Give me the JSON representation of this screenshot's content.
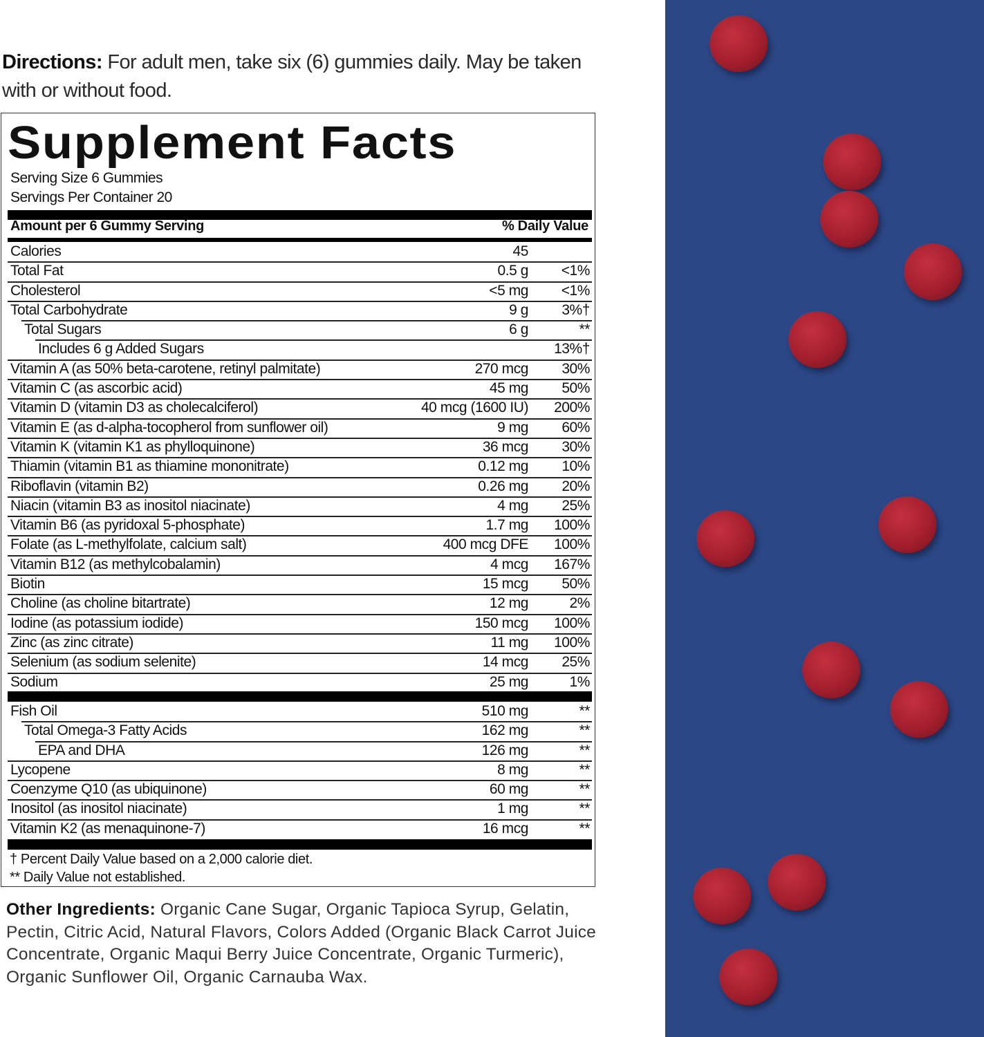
{
  "directions": {
    "label": "Directions:",
    "text": " For adult men, take six (6) gummies daily. May be taken with or without food."
  },
  "facts": {
    "title": "Supplement Facts",
    "serving_size": "Serving Size 6 Gummies",
    "servings_per_container": "Servings Per Container 20",
    "header_amount": "Amount per 6 Gummy Serving",
    "header_dv": "% Daily Value",
    "rows": [
      {
        "name": "Calories",
        "amount": "45",
        "dv": "",
        "indent": 0
      },
      {
        "name": "Total Fat",
        "amount": "0.5 g",
        "dv": "<1%",
        "indent": 0
      },
      {
        "name": "Cholesterol",
        "amount": "<5 mg",
        "dv": "<1%",
        "indent": 0
      },
      {
        "name": "Total Carbohydrate",
        "amount": "9 g",
        "dv": "3%†",
        "indent": 0
      },
      {
        "name": "Total Sugars",
        "amount": "6 g",
        "dv": "**",
        "indent": 1
      },
      {
        "name": "Includes 6 g Added Sugars",
        "amount": "",
        "dv": "13%†",
        "indent": 2
      },
      {
        "name": "Vitamin A (as 50% beta-carotene, retinyl palmitate)",
        "amount": "270 mcg",
        "dv": "30%",
        "indent": 0
      },
      {
        "name": "Vitamin C (as ascorbic acid)",
        "amount": "45 mg",
        "dv": "50%",
        "indent": 0
      },
      {
        "name": "Vitamin D (vitamin D3 as cholecalciferol)",
        "amount": "40 mcg (1600 IU)",
        "dv": "200%",
        "indent": 0
      },
      {
        "name": "Vitamin E (as d-alpha-tocopherol from sunflower oil)",
        "amount": "9 mg",
        "dv": "60%",
        "indent": 0
      },
      {
        "name": "Vitamin K (vitamin K1 as phylloquinone)",
        "amount": "36 mcg",
        "dv": "30%",
        "indent": 0
      },
      {
        "name": "Thiamin (vitamin B1 as thiamine mononitrate)",
        "amount": "0.12 mg",
        "dv": "10%",
        "indent": 0
      },
      {
        "name": "Riboflavin (vitamin B2)",
        "amount": "0.26 mg",
        "dv": "20%",
        "indent": 0
      },
      {
        "name": "Niacin (vitamin B3 as inositol niacinate)",
        "amount": "4 mg",
        "dv": "25%",
        "indent": 0
      },
      {
        "name": "Vitamin B6 (as pyridoxal 5-phosphate)",
        "amount": "1.7 mg",
        "dv": "100%",
        "indent": 0
      },
      {
        "name": "Folate (as L-methylfolate, calcium salt)",
        "amount": "400 mcg DFE",
        "dv": "100%",
        "indent": 0
      },
      {
        "name": "Vitamin B12 (as methylcobalamin)",
        "amount": "4 mcg",
        "dv": "167%",
        "indent": 0
      },
      {
        "name": "Biotin",
        "amount": "15 mcg",
        "dv": "50%",
        "indent": 0
      },
      {
        "name": "Choline (as choline bitartrate)",
        "amount": "12 mg",
        "dv": "2%",
        "indent": 0
      },
      {
        "name": "Iodine (as potassium iodide)",
        "amount": "150 mcg",
        "dv": "100%",
        "indent": 0
      },
      {
        "name": "Zinc (as zinc citrate)",
        "amount": "11 mg",
        "dv": "100%",
        "indent": 0
      },
      {
        "name": "Selenium (as sodium selenite)",
        "amount": "14 mcg",
        "dv": "25%",
        "indent": 0
      },
      {
        "name": "Sodium",
        "amount": "25 mg",
        "dv": "1%",
        "indent": 0
      }
    ],
    "rows2": [
      {
        "name": "Fish Oil",
        "amount": "510 mg",
        "dv": "**",
        "indent": 0
      },
      {
        "name": "Total Omega-3 Fatty Acids",
        "amount": "162 mg",
        "dv": "**",
        "indent": 1
      },
      {
        "name": "EPA and DHA",
        "amount": "126 mg",
        "dv": "**",
        "indent": 2
      },
      {
        "name": "Lycopene",
        "amount": "8 mg",
        "dv": "**",
        "indent": 0
      },
      {
        "name": "Coenzyme Q10 (as ubiquinone)",
        "amount": "60 mg",
        "dv": "**",
        "indent": 0
      },
      {
        "name": "Inositol (as inositol niacinate)",
        "amount": "1 mg",
        "dv": "**",
        "indent": 0
      },
      {
        "name": "Vitamin K2 (as menaquinone-7)",
        "amount": "16 mcg",
        "dv": "**",
        "indent": 0
      }
    ],
    "footnote1": "† Percent Daily Value based on a 2,000 calorie diet.",
    "footnote2": "** Daily Value not established."
  },
  "other_ingredients": {
    "label": "Other Ingredients:",
    "text": " Organic Cane Sugar, Organic Tapioca Syrup, Gelatin, Pectin, Citric Acid, Natural Flavors, Colors Added (Organic Black Carrot Juice Concentrate, Organic Maqui Berry Juice Concentrate, Organic Turmeric), Organic Sunflower Oil, Organic Carnauba Wax."
  },
  "colors": {
    "background_panel": "#2b4785",
    "gummy": "#a41f2e"
  }
}
